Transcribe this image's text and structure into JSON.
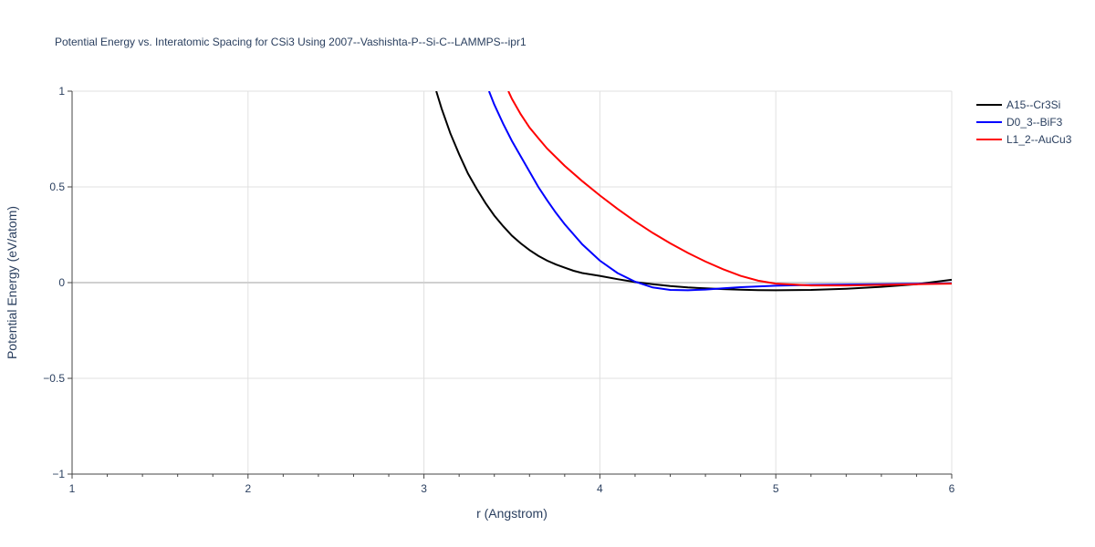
{
  "chart_data": {
    "type": "line",
    "title": "Potential Energy vs. Interatomic Spacing for CSi3 Using 2007--Vashishta-P--Si-C--LAMMPS--ipr1",
    "xlabel": "r (Angstrom)",
    "ylabel": "Potential Energy (eV/atom)",
    "xlim": [
      1,
      6
    ],
    "ylim": [
      -1,
      1
    ],
    "xticks": [
      1,
      2,
      3,
      4,
      5,
      6
    ],
    "xtick_labels": [
      "1",
      "2",
      "3",
      "4",
      "5",
      "6"
    ],
    "yticks": [
      -1,
      -0.5,
      0,
      0.5,
      1
    ],
    "ytick_labels": [
      "−1",
      "−0.5",
      "0",
      "0.5",
      "1"
    ],
    "grid": true,
    "legend_position": "top-right",
    "series": [
      {
        "name": "A15--Cr3Si",
        "color": "#000000",
        "x": [
          3.07,
          3.1,
          3.15,
          3.2,
          3.25,
          3.3,
          3.35,
          3.4,
          3.45,
          3.5,
          3.55,
          3.6,
          3.65,
          3.7,
          3.75,
          3.8,
          3.85,
          3.9,
          4.0,
          4.1,
          4.2,
          4.3,
          4.4,
          4.5,
          4.6,
          4.7,
          4.8,
          4.9,
          5.0,
          5.2,
          5.4,
          5.6,
          5.8,
          6.0
        ],
        "y": [
          1.0,
          0.91,
          0.78,
          0.67,
          0.57,
          0.49,
          0.415,
          0.35,
          0.295,
          0.245,
          0.205,
          0.17,
          0.14,
          0.115,
          0.095,
          0.078,
          0.062,
          0.05,
          0.035,
          0.018,
          0.003,
          -0.008,
          -0.018,
          -0.025,
          -0.03,
          -0.034,
          -0.037,
          -0.039,
          -0.04,
          -0.038,
          -0.032,
          -0.022,
          -0.008,
          0.015
        ]
      },
      {
        "name": "D0_3--BiF3",
        "color": "#0000ff",
        "x": [
          3.37,
          3.4,
          3.45,
          3.5,
          3.55,
          3.6,
          3.65,
          3.7,
          3.75,
          3.8,
          3.9,
          4.0,
          4.1,
          4.2,
          4.3,
          4.4,
          4.5,
          4.6,
          4.7,
          4.8,
          5.0,
          5.2,
          5.4,
          5.6,
          5.8,
          6.0
        ],
        "y": [
          1.0,
          0.93,
          0.83,
          0.74,
          0.66,
          0.58,
          0.5,
          0.43,
          0.365,
          0.305,
          0.2,
          0.115,
          0.05,
          0.005,
          -0.025,
          -0.038,
          -0.04,
          -0.036,
          -0.03,
          -0.024,
          -0.016,
          -0.012,
          -0.01,
          -0.008,
          -0.006,
          -0.004
        ]
      },
      {
        "name": "L1_2--AuCu3",
        "color": "#ff0000",
        "x": [
          3.48,
          3.5,
          3.55,
          3.6,
          3.65,
          3.7,
          3.8,
          3.9,
          4.0,
          4.1,
          4.2,
          4.3,
          4.4,
          4.5,
          4.6,
          4.7,
          4.8,
          4.9,
          5.0,
          5.2,
          5.4,
          5.6,
          5.8,
          6.0
        ],
        "y": [
          1.0,
          0.96,
          0.88,
          0.81,
          0.755,
          0.7,
          0.61,
          0.53,
          0.455,
          0.385,
          0.32,
          0.26,
          0.205,
          0.155,
          0.11,
          0.07,
          0.035,
          0.01,
          -0.005,
          -0.015,
          -0.015,
          -0.012,
          -0.008,
          -0.005
        ]
      }
    ]
  }
}
